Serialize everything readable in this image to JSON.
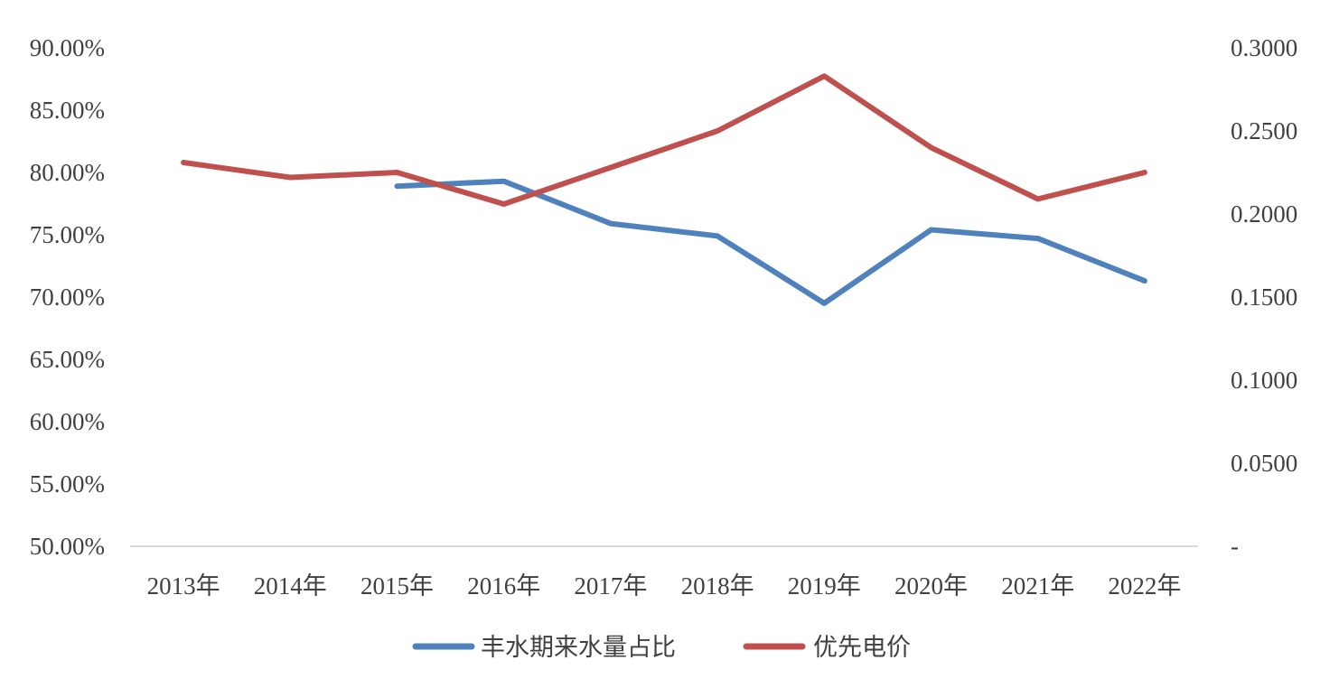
{
  "chart_data": {
    "type": "line",
    "title": "",
    "xlabel": "",
    "ylabel": "",
    "categories": [
      "2013年",
      "2014年",
      "2015年",
      "2016年",
      "2017年",
      "2018年",
      "2019年",
      "2020年",
      "2021年",
      "2022年"
    ],
    "y_left": {
      "range": [
        0.5,
        0.9
      ],
      "ticks": [
        0.5,
        0.55,
        0.6,
        0.65,
        0.7,
        0.75,
        0.8,
        0.85,
        0.9
      ],
      "tick_labels": [
        "50.00%",
        "55.00%",
        "60.00%",
        "65.00%",
        "70.00%",
        "75.00%",
        "80.00%",
        "85.00%",
        "90.00%"
      ]
    },
    "y_right": {
      "range": [
        0,
        0.3
      ],
      "ticks": [
        0,
        0.05,
        0.1,
        0.15,
        0.2,
        0.25,
        0.3
      ],
      "tick_labels": [
        "-",
        "0.0500",
        "0.1000",
        "0.1500",
        "0.2000",
        "0.2500",
        "0.3000"
      ]
    },
    "series": [
      {
        "name": "丰水期来水量占比",
        "axis": "left",
        "color": "#4f81bd",
        "values": [
          null,
          null,
          0.789,
          0.793,
          0.759,
          0.749,
          0.695,
          0.754,
          0.747,
          0.713
        ]
      },
      {
        "name": "优先电价",
        "axis": "right",
        "color": "#c0504d",
        "values": [
          0.231,
          0.222,
          0.225,
          0.206,
          0.228,
          0.25,
          0.283,
          0.24,
          0.209,
          0.225
        ]
      }
    ],
    "grid": false,
    "legend": "bottom-center"
  }
}
